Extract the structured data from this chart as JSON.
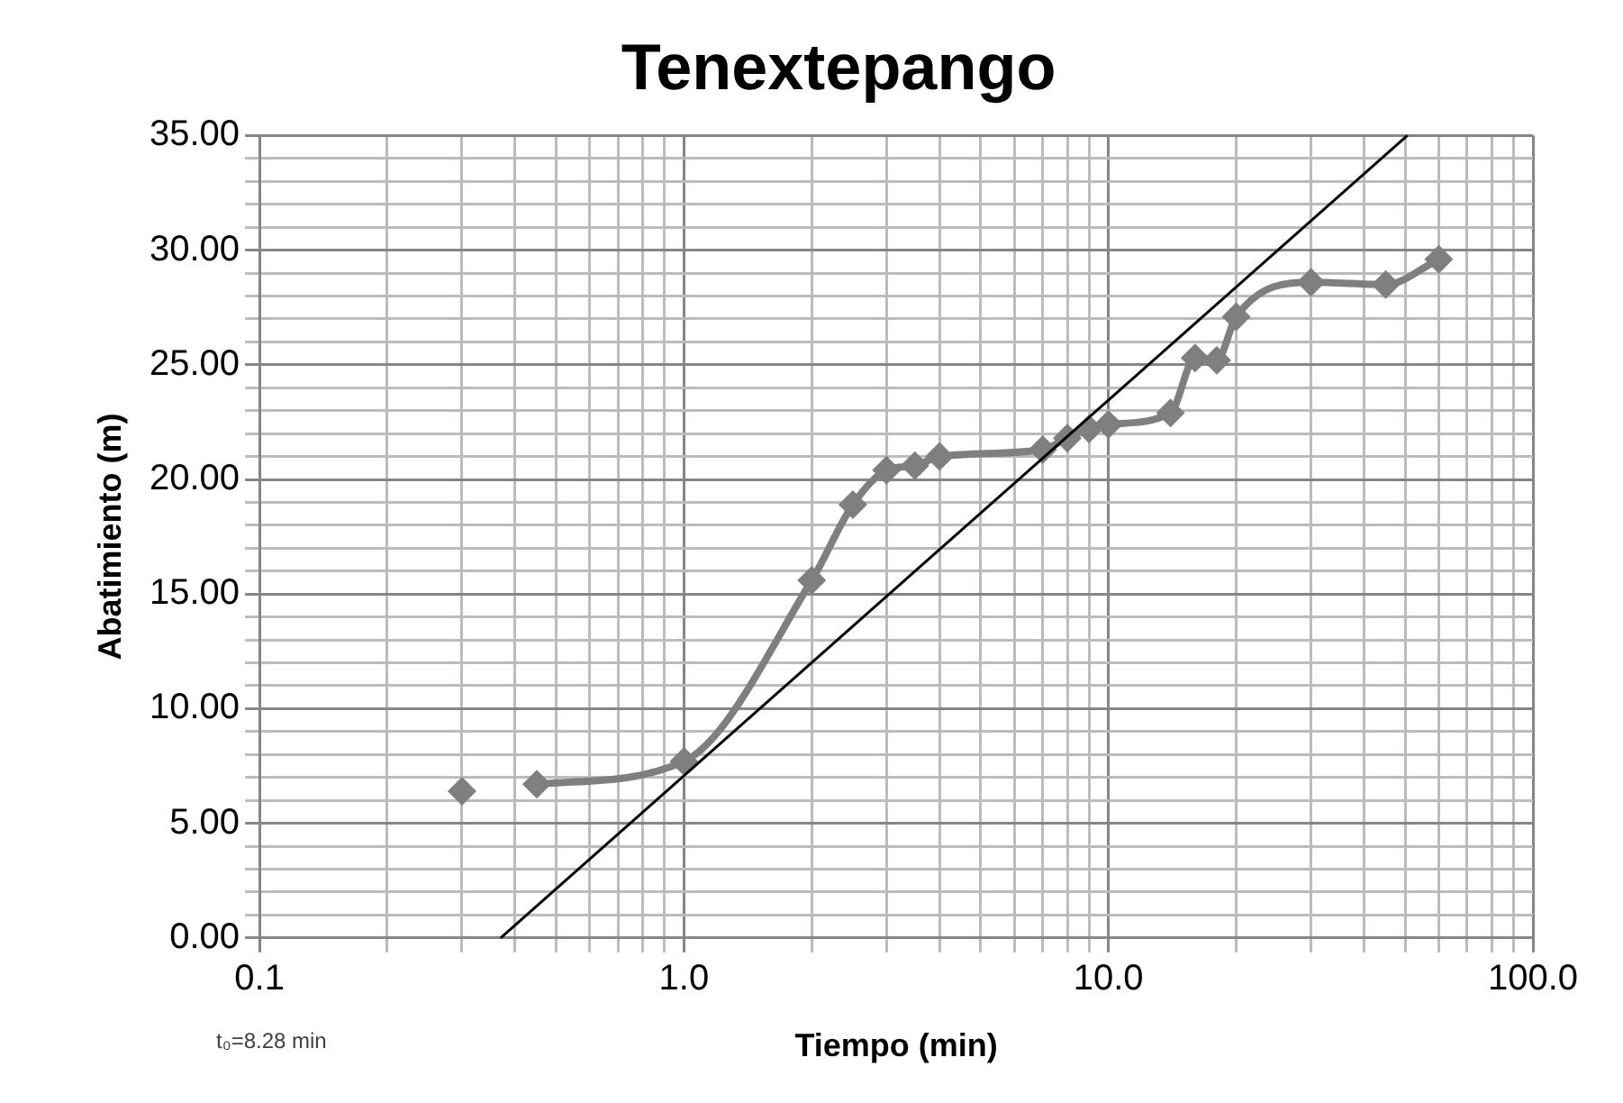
{
  "chart_data": {
    "type": "line",
    "title": "Tenextepango",
    "xlabel": "Tiempo (min)",
    "ylabel": "Abatimiento (m)",
    "annotations": [
      "t₀=8.28 min"
    ],
    "log": "x",
    "grid": true,
    "legend": false,
    "xlim": [
      0.1,
      100
    ],
    "ylim": [
      0,
      35
    ],
    "xticks": [
      {
        "value": 0.1,
        "label": "0.1"
      },
      {
        "value": 0.2,
        "label": null
      },
      {
        "value": 0.3,
        "label": null
      },
      {
        "value": 0.4,
        "label": null
      },
      {
        "value": 0.5,
        "label": null
      },
      {
        "value": 0.6,
        "label": null
      },
      {
        "value": 0.7,
        "label": null
      },
      {
        "value": 0.8,
        "label": null
      },
      {
        "value": 0.9,
        "label": null
      },
      {
        "value": 1,
        "label": "1.0"
      },
      {
        "value": 2,
        "label": null
      },
      {
        "value": 3,
        "label": null
      },
      {
        "value": 4,
        "label": null
      },
      {
        "value": 5,
        "label": null
      },
      {
        "value": 6,
        "label": null
      },
      {
        "value": 7,
        "label": null
      },
      {
        "value": 8,
        "label": null
      },
      {
        "value": 9,
        "label": null
      },
      {
        "value": 10,
        "label": "10.0"
      },
      {
        "value": 20,
        "label": null
      },
      {
        "value": 30,
        "label": null
      },
      {
        "value": 40,
        "label": null
      },
      {
        "value": 50,
        "label": null
      },
      {
        "value": 60,
        "label": null
      },
      {
        "value": 70,
        "label": null
      },
      {
        "value": 80,
        "label": null
      },
      {
        "value": 90,
        "label": null
      },
      {
        "value": 100,
        "label": "100.0"
      }
    ],
    "yticks": [
      {
        "value": 0,
        "label": "0.00"
      },
      {
        "value": 1,
        "label": null
      },
      {
        "value": 2,
        "label": null
      },
      {
        "value": 3,
        "label": null
      },
      {
        "value": 4,
        "label": null
      },
      {
        "value": 5,
        "label": "5.00"
      },
      {
        "value": 6,
        "label": null
      },
      {
        "value": 7,
        "label": null
      },
      {
        "value": 8,
        "label": null
      },
      {
        "value": 9,
        "label": null
      },
      {
        "value": 10,
        "label": "10.00"
      },
      {
        "value": 11,
        "label": null
      },
      {
        "value": 12,
        "label": null
      },
      {
        "value": 13,
        "label": null
      },
      {
        "value": 14,
        "label": null
      },
      {
        "value": 15,
        "label": "15.00"
      },
      {
        "value": 16,
        "label": null
      },
      {
        "value": 17,
        "label": null
      },
      {
        "value": 18,
        "label": null
      },
      {
        "value": 19,
        "label": null
      },
      {
        "value": 20,
        "label": "20.00"
      },
      {
        "value": 21,
        "label": null
      },
      {
        "value": 22,
        "label": null
      },
      {
        "value": 23,
        "label": null
      },
      {
        "value": 24,
        "label": null
      },
      {
        "value": 25,
        "label": "25.00"
      },
      {
        "value": 26,
        "label": null
      },
      {
        "value": 27,
        "label": null
      },
      {
        "value": 28,
        "label": null
      },
      {
        "value": 29,
        "label": null
      },
      {
        "value": 30,
        "label": "30.00"
      },
      {
        "value": 31,
        "label": null
      },
      {
        "value": 32,
        "label": null
      },
      {
        "value": 33,
        "label": null
      },
      {
        "value": 34,
        "label": null
      },
      {
        "value": 35,
        "label": "35.00"
      }
    ],
    "series": [
      {
        "type": "scatter",
        "color": "#7f7f7f",
        "marker": "diamond",
        "x": [
          0.3
        ],
        "values": [
          6.4
        ]
      },
      {
        "type": "line",
        "color": "#7f7f7f",
        "marker": "diamond",
        "x": [
          0.45,
          1,
          2,
          2.5,
          3,
          3.5,
          4,
          7,
          8,
          9,
          10,
          14,
          16,
          18,
          20,
          30,
          45,
          60
        ],
        "values": [
          6.7,
          7.7,
          15.6,
          18.9,
          20.4,
          20.6,
          21.0,
          21.3,
          21.8,
          22.2,
          22.4,
          22.9,
          25.3,
          25.2,
          27.1,
          28.6,
          28.5,
          29.6
        ]
      },
      {
        "type": "line",
        "color": "#000000",
        "marker": "none",
        "x": [
          0.37,
          50.6
        ],
        "values": [
          0,
          35
        ]
      }
    ]
  }
}
